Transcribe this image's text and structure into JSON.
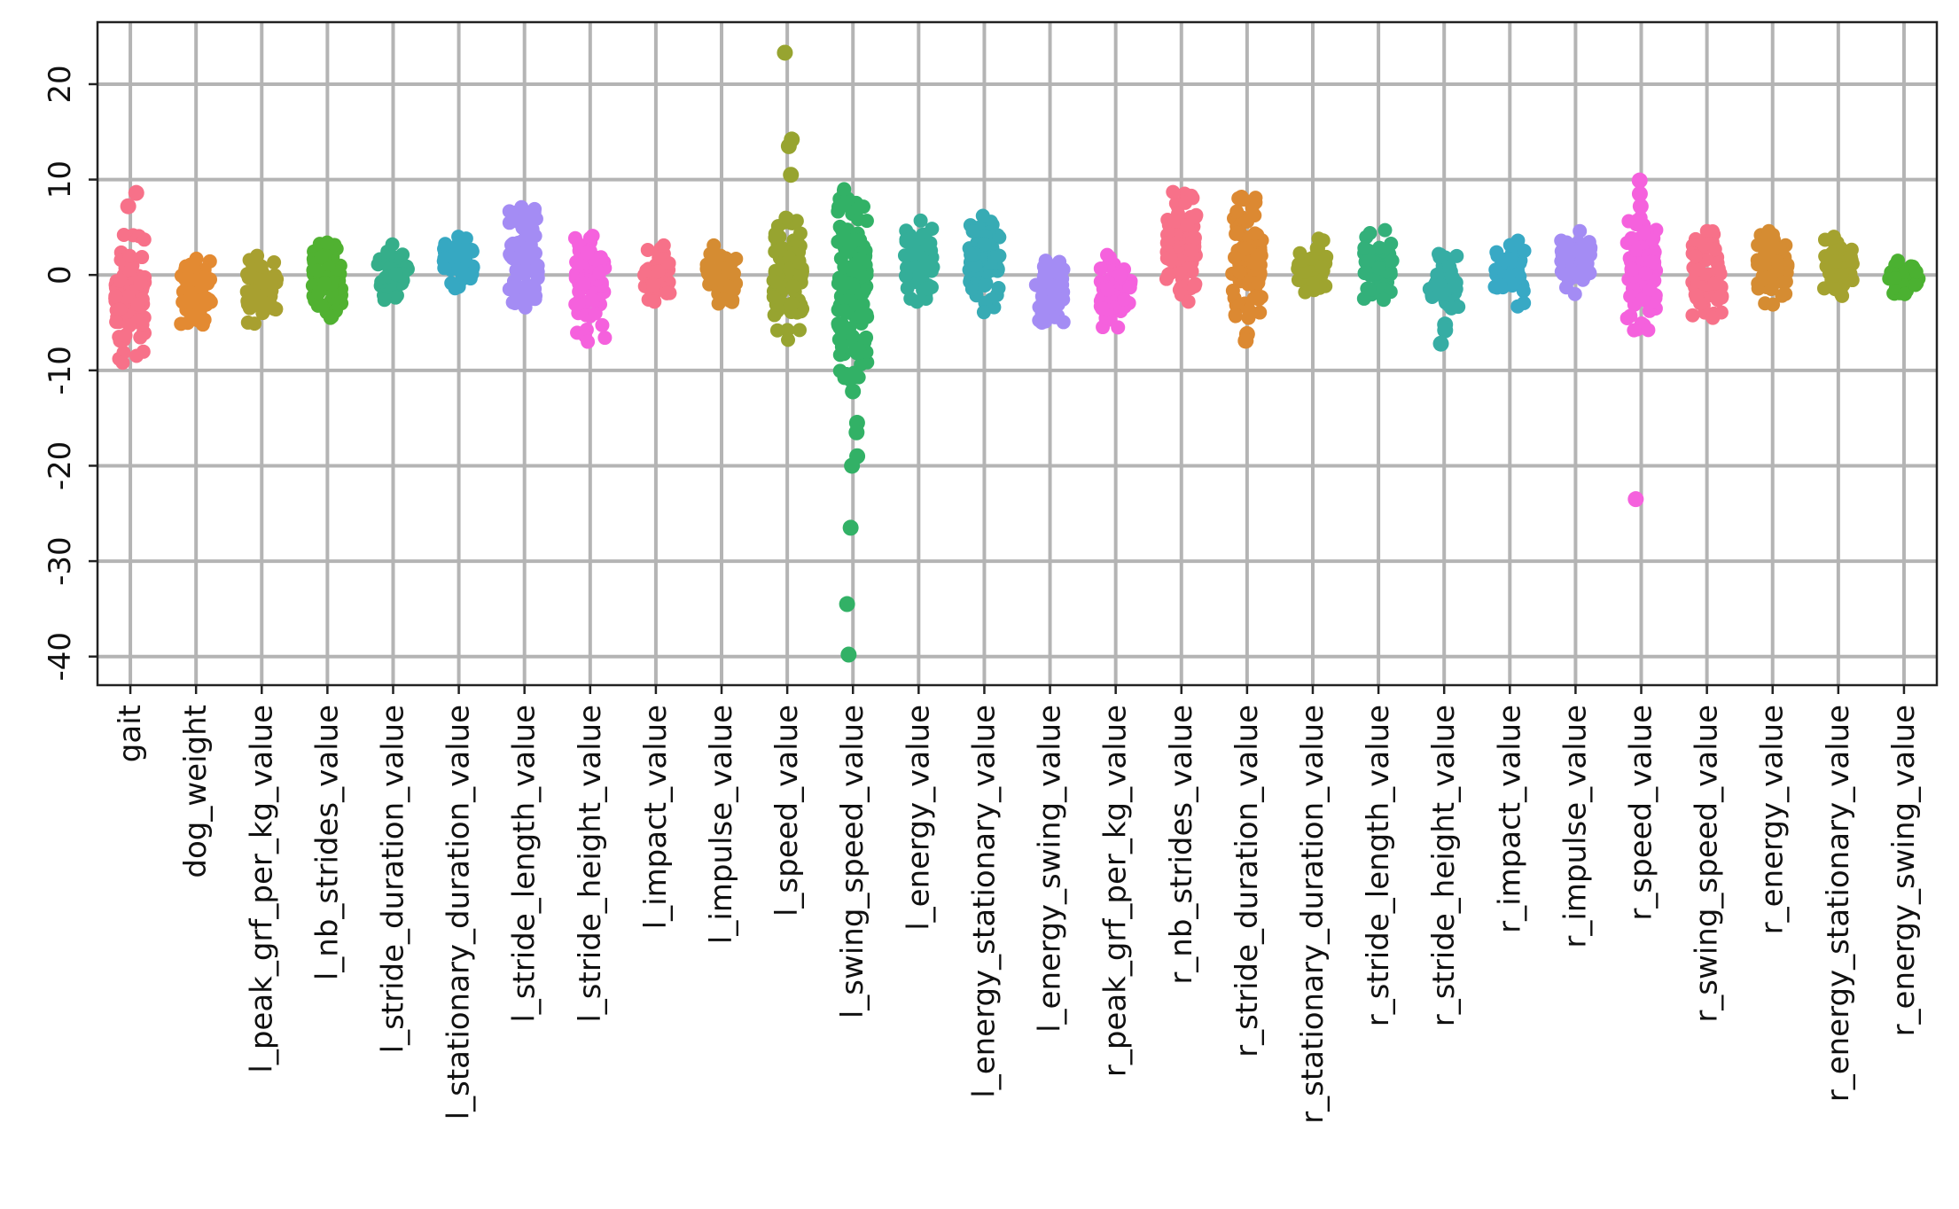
{
  "chart_data": {
    "type": "scatter",
    "subtype": "strip",
    "title": "",
    "xlabel": "",
    "ylabel": "",
    "ylim": [
      -43,
      26.5
    ],
    "yticks": [
      20,
      10,
      0,
      -10,
      -20,
      -30,
      -40
    ],
    "ytick_labels": [
      "20",
      "10",
      "0",
      "-10",
      "-20",
      "-30",
      "-40"
    ],
    "grid": true,
    "legend": "none",
    "categories": [
      "gait",
      "dog_weight",
      "l_peak_grf_per_kg_value",
      "l_nb_strides_value",
      "l_stride_duration_value",
      "l_stationary_duration_value",
      "l_stride_length_value",
      "l_stride_height_value",
      "l_impact_value",
      "l_impulse_value",
      "l_speed_value",
      "l_swing_speed_value",
      "l_energy_value",
      "l_energy_stationary_value",
      "l_energy_swing_value",
      "r_peak_grf_per_kg_value",
      "r_nb_strides_value",
      "r_stride_duration_value",
      "r_stationary_duration_value",
      "r_stride_length_value",
      "r_stride_height_value",
      "r_impact_value",
      "r_impulse_value",
      "r_speed_value",
      "r_swing_speed_value",
      "r_energy_value",
      "r_energy_stationary_value",
      "r_energy_swing_value"
    ],
    "series": [
      {
        "color": "#f77189",
        "min": -9.2,
        "max": 4.2,
        "outliers": [
          7.2,
          8.6
        ]
      },
      {
        "color": "#e38a32",
        "min": -5.2,
        "max": 1.7,
        "outliers": []
      },
      {
        "color": "#a8a030",
        "min": -5.1,
        "max": 2.0,
        "outliers": []
      },
      {
        "color": "#50b131",
        "min": -4.5,
        "max": 3.4,
        "outliers": []
      },
      {
        "color": "#35ae8a",
        "min": -2.6,
        "max": 3.2,
        "outliers": []
      },
      {
        "color": "#36a8c2",
        "min": -1.4,
        "max": 4.0,
        "outliers": []
      },
      {
        "color": "#a48cf4",
        "min": -3.4,
        "max": 7.1,
        "outliers": []
      },
      {
        "color": "#f561dd",
        "min": -7.0,
        "max": 4.1,
        "outliers": []
      },
      {
        "color": "#f77189",
        "min": -2.8,
        "max": 3.1,
        "outliers": []
      },
      {
        "color": "#d58c32",
        "min": -3.0,
        "max": 3.1,
        "outliers": []
      },
      {
        "color": "#97a430",
        "min": -6.8,
        "max": 6.0,
        "outliers": [
          10.5,
          13.5,
          14.2,
          23.3
        ]
      },
      {
        "color": "#32b166",
        "min": -11.0,
        "max": 9.0,
        "outliers": [
          -12.2,
          -15.5,
          -16.5,
          -19.0,
          -20.0,
          -26.5,
          -34.5,
          -39.8
        ]
      },
      {
        "color": "#34ae99",
        "min": -2.8,
        "max": 5.7,
        "outliers": []
      },
      {
        "color": "#37abb4",
        "min": -3.9,
        "max": 6.2,
        "outliers": []
      },
      {
        "color": "#a48cf4",
        "min": -5.0,
        "max": 1.5,
        "outliers": []
      },
      {
        "color": "#f561dd",
        "min": -5.5,
        "max": 2.1,
        "outliers": []
      },
      {
        "color": "#f77189",
        "min": -2.8,
        "max": 8.7,
        "outliers": []
      },
      {
        "color": "#dc8932",
        "min": -4.5,
        "max": 8.2,
        "outliers": [
          -6.2,
          -6.9
        ]
      },
      {
        "color": "#9ea42f",
        "min": -1.8,
        "max": 3.8,
        "outliers": []
      },
      {
        "color": "#33b07a",
        "min": -2.6,
        "max": 4.7,
        "outliers": []
      },
      {
        "color": "#36ada4",
        "min": -3.5,
        "max": 2.2,
        "outliers": [
          -5.2,
          -5.8,
          -7.2
        ]
      },
      {
        "color": "#38a9c5",
        "min": -3.3,
        "max": 3.6,
        "outliers": []
      },
      {
        "color": "#a48cf4",
        "min": -2.0,
        "max": 4.6,
        "outliers": []
      },
      {
        "color": "#f561dd",
        "min": -5.8,
        "max": 6.0,
        "outliers": [
          7.2,
          8.5,
          9.9,
          -23.5
        ]
      },
      {
        "color": "#f77189",
        "min": -4.5,
        "max": 4.6,
        "outliers": []
      },
      {
        "color": "#d58c32",
        "min": -3.1,
        "max": 4.6,
        "outliers": []
      },
      {
        "color": "#a4a22f",
        "min": -2.2,
        "max": 4.0,
        "outliers": []
      },
      {
        "color": "#4bb131",
        "min": -2.0,
        "max": 1.5,
        "outliers": []
      }
    ]
  }
}
